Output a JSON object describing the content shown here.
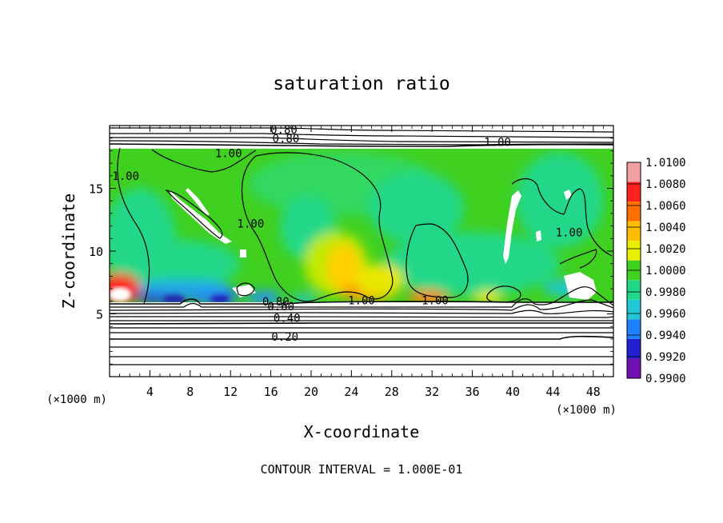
{
  "chart_data": {
    "type": "heatmap",
    "title": "saturation ratio",
    "xlabel": "X-coordinate",
    "ylabel": "Z-coordinate",
    "x_unit": "(×1000 m)",
    "y_unit": "(×1000 m)",
    "xlim": [
      0,
      50
    ],
    "ylim": [
      0,
      20
    ],
    "x_ticks": [
      4,
      8,
      12,
      16,
      20,
      24,
      28,
      32,
      36,
      40,
      44,
      48
    ],
    "y_ticks": [
      5,
      10,
      15
    ],
    "footer": "CONTOUR INTERVAL = 1.000E-01",
    "colorbar": {
      "levels": [
        "1.0100",
        "1.0080",
        "1.0060",
        "1.0040",
        "1.0020",
        "1.0000",
        "0.9980",
        "0.9960",
        "0.9940",
        "0.9920",
        "0.9900"
      ],
      "colors": [
        "#f4a0a0",
        "#ff2020",
        "#ff7000",
        "#ffbf00",
        "#e8f000",
        "#40d020",
        "#20d888",
        "#20c8d8",
        "#2080ff",
        "#2020d0",
        "#7010b0"
      ]
    },
    "contour_labels": [
      {
        "text": "0.80",
        "x": 17.3,
        "z": 19.5
      },
      {
        "text": "0.80",
        "x": 17.5,
        "z": 18.8
      },
      {
        "text": "1.00",
        "x": 38.5,
        "z": 18.5
      },
      {
        "text": "1.00",
        "x": 1.6,
        "z": 15.8
      },
      {
        "text": "1.00",
        "x": 11.8,
        "z": 17.6
      },
      {
        "text": "1.00",
        "x": 14.0,
        "z": 12.0
      },
      {
        "text": "1.00",
        "x": 45.6,
        "z": 11.3
      },
      {
        "text": "1.00",
        "x": 25.0,
        "z": 5.9
      },
      {
        "text": "1.00",
        "x": 32.3,
        "z": 5.9
      },
      {
        "text": "0.80",
        "x": 16.5,
        "z": 5.8
      },
      {
        "text": "0.60",
        "x": 17.0,
        "z": 5.4
      },
      {
        "text": "0.40",
        "x": 17.6,
        "z": 4.5
      },
      {
        "text": "0.20",
        "x": 17.4,
        "z": 3.0
      }
    ]
  }
}
